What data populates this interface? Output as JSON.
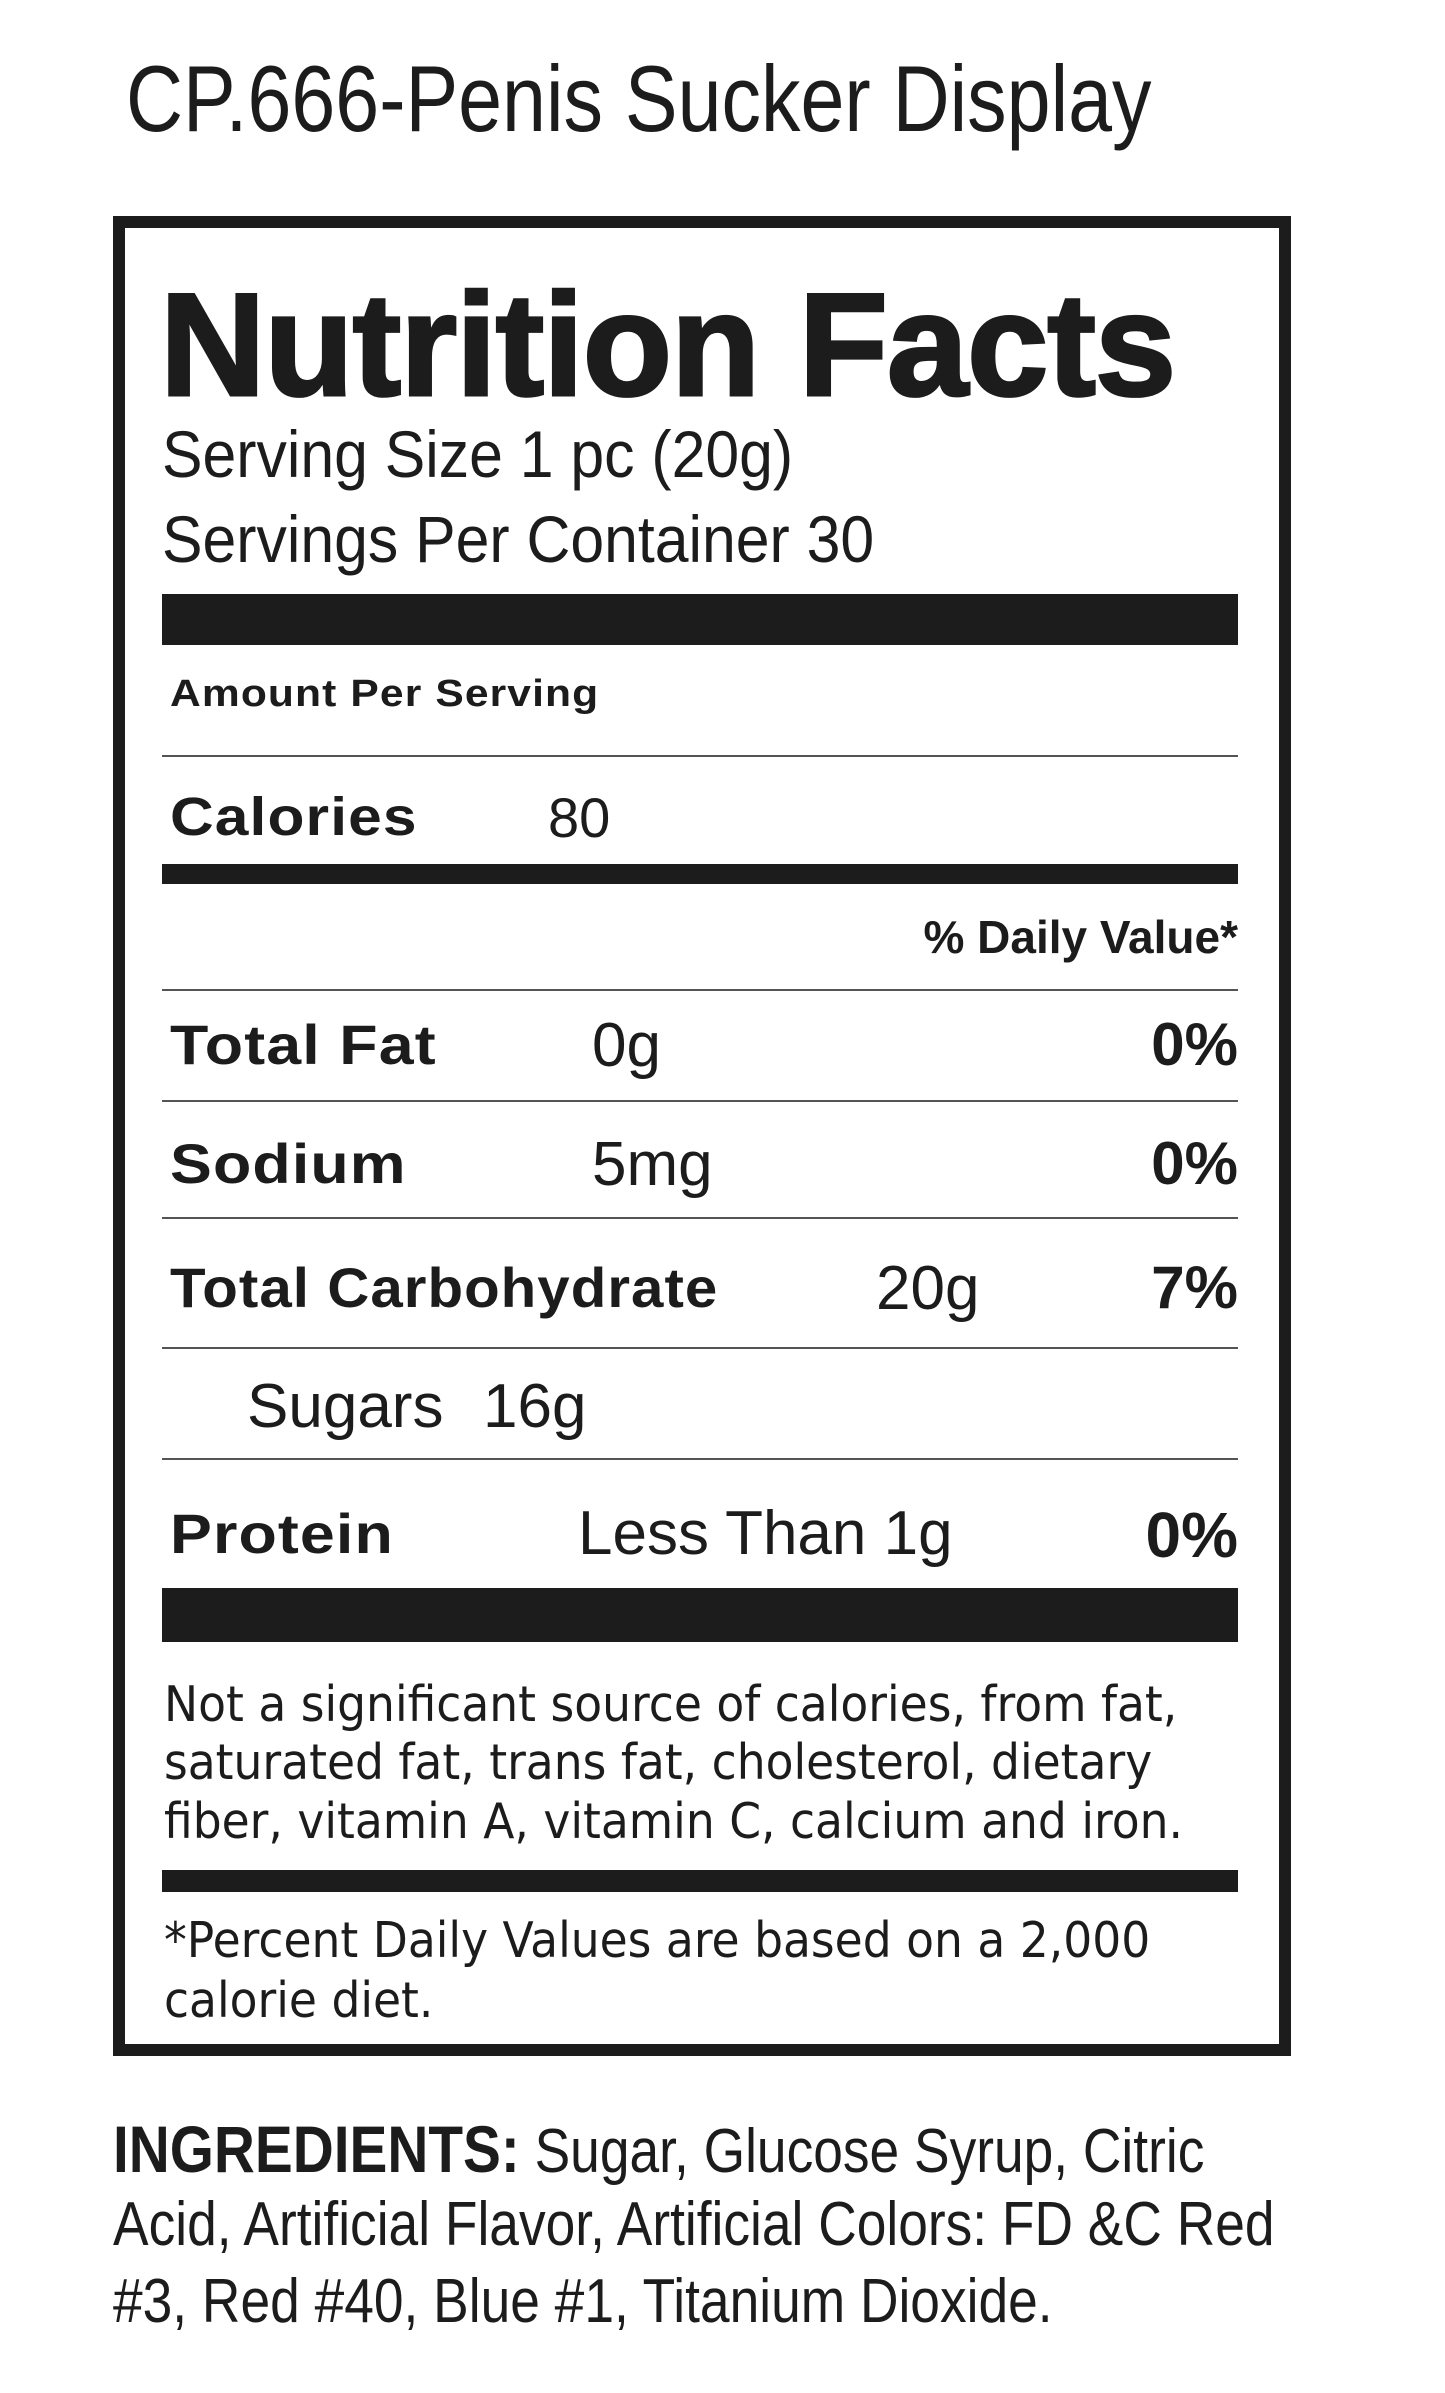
{
  "title": "CP.666-Penis Sucker Display",
  "label": {
    "heading": "Nutrition Facts",
    "serving_size": "Serving Size 1 pc (20g)",
    "servings_per_container": "Servings Per Container 30",
    "amount_per_serving": "Amount Per Serving",
    "calories_label": "Calories",
    "calories_value": "80",
    "daily_value_header": "% Daily Value*",
    "nutrients": [
      {
        "name": "Total Fat",
        "amount": "0g",
        "dv": "0%"
      },
      {
        "name": "Sodium",
        "amount": "5mg",
        "dv": "0%"
      },
      {
        "name": "Total Carbohydrate",
        "amount": "20g",
        "dv": "7%"
      },
      {
        "name": "Sugars",
        "amount": "16g",
        "dv": ""
      },
      {
        "name": "Protein",
        "amount": "Less Than 1g",
        "dv": "0%"
      }
    ],
    "footnote_lines": [
      "Not a significant source of calories, from fat,",
      "saturated fat, trans fat, cholesterol, dietary",
      "fiber, vitamin A, vitamin C, calcium and iron."
    ],
    "dv_note_lines": [
      "*Percent Daily Values are based on a 2,000",
      "calorie diet."
    ]
  },
  "ingredients": {
    "label": "INGREDIENTS:",
    "lines": [
      " Sugar, Glucose Syrup, Citric",
      "Acid, Artificial Flavor, Artificial Colors: FD &C Red",
      "#3, Red #40, Blue #1, Titanium Dioxide."
    ]
  }
}
